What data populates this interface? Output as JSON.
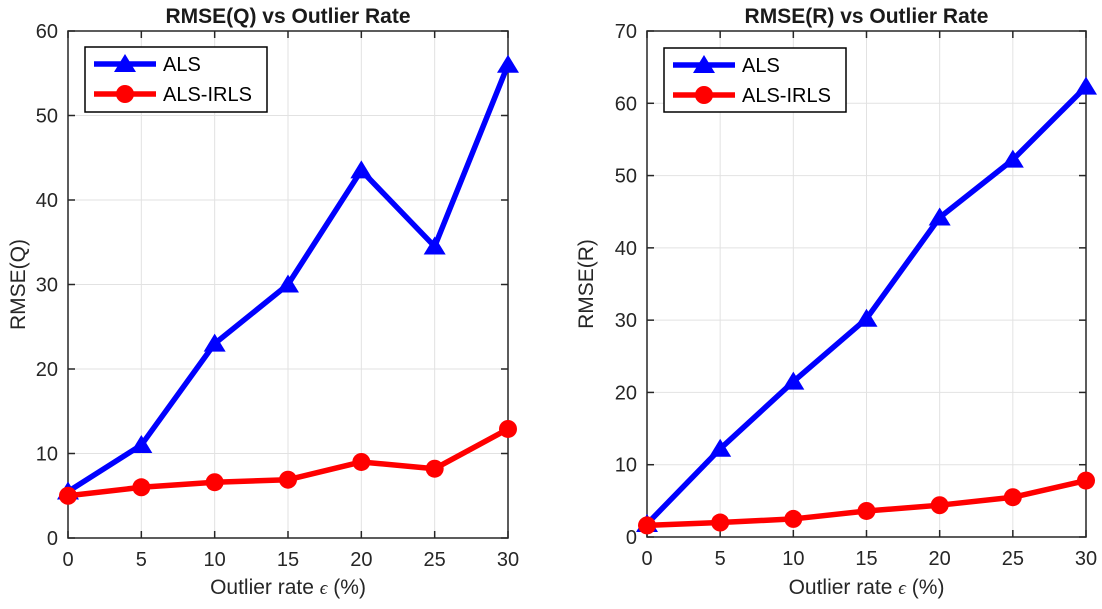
{
  "colors": {
    "series_blue": "#0000ff",
    "series_red": "#ff0000",
    "grid": "#e2e2e2",
    "axis": "#262626",
    "text": "#262626",
    "legend_border": "#000000",
    "background": "#ffffff"
  },
  "chart_data": [
    {
      "type": "line",
      "title": "RMSE(Q) vs Outlier Rate",
      "ylabel": "RMSE(Q)",
      "xlabel": {
        "prefix": "Outlier rate ",
        "symbol": "ϵ",
        "suffix": " (%)"
      },
      "x": [
        0,
        5,
        10,
        15,
        20,
        25,
        30
      ],
      "xticks": [
        0,
        5,
        10,
        15,
        20,
        25,
        30
      ],
      "yticks": [
        0,
        10,
        20,
        30,
        40,
        50,
        60
      ],
      "xlim": [
        0,
        30
      ],
      "ylim": [
        0,
        60
      ],
      "grid": true,
      "legend_position": "top-left",
      "series": [
        {
          "name": "ALS",
          "color": "#0000ff",
          "marker": "triangle",
          "values": [
            5.5,
            11.0,
            23.0,
            30.0,
            43.5,
            34.5,
            56.0
          ]
        },
        {
          "name": "ALS-IRLS",
          "color": "#ff0000",
          "marker": "circle",
          "values": [
            5.0,
            6.0,
            6.6,
            6.9,
            9.0,
            8.2,
            12.9
          ]
        }
      ]
    },
    {
      "type": "line",
      "title": "RMSE(R) vs Outlier Rate",
      "ylabel": "RMSE(R)",
      "xlabel": {
        "prefix": "Outlier rate ",
        "symbol": "ϵ",
        "suffix": " (%)"
      },
      "x": [
        0,
        5,
        10,
        15,
        20,
        25,
        30
      ],
      "xticks": [
        0,
        5,
        10,
        15,
        20,
        25,
        30
      ],
      "yticks": [
        0,
        10,
        20,
        30,
        40,
        50,
        60,
        70
      ],
      "xlim": [
        0,
        30
      ],
      "ylim": [
        0,
        70
      ],
      "grid": true,
      "legend_position": "top-left",
      "series": [
        {
          "name": "ALS",
          "color": "#0000ff",
          "marker": "triangle",
          "values": [
            1.8,
            12.2,
            21.5,
            30.2,
            44.2,
            52.2,
            62.3
          ]
        },
        {
          "name": "ALS-IRLS",
          "color": "#ff0000",
          "marker": "circle",
          "values": [
            1.6,
            2.0,
            2.5,
            3.6,
            4.4,
            5.5,
            7.8
          ]
        }
      ]
    }
  ]
}
